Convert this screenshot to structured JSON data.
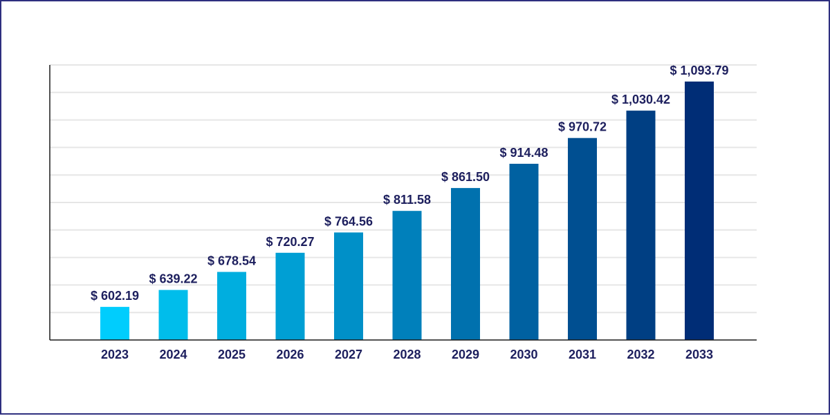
{
  "chart_data": {
    "type": "bar",
    "categories": [
      "2023",
      "2024",
      "2025",
      "2026",
      "2027",
      "2028",
      "2029",
      "2030",
      "2031",
      "2032",
      "2033"
    ],
    "values": [
      602.19,
      639.22,
      678.54,
      720.27,
      764.56,
      811.58,
      861.5,
      914.48,
      970.72,
      1030.42,
      1093.79
    ],
    "value_labels": [
      "$ 602.19",
      "$ 639.22",
      "$ 678.54",
      "$ 720.27",
      "$ 764.56",
      "$ 811.58",
      "$ 861.50",
      "$ 914.48",
      "$ 970.72",
      "$ 1,030.42",
      "$ 1,093.79"
    ],
    "ylim": [
      530,
      1130
    ],
    "grid": true,
    "legend": "none",
    "title": "",
    "xlabel": "",
    "ylabel": "",
    "colors": [
      "#00cdfd",
      "#00bdeb",
      "#00aedf",
      "#009fd4",
      "#0090c8",
      "#0080bb",
      "#0071ae",
      "#0061a1",
      "#004f91",
      "#003f83",
      "#002d76"
    ],
    "text_color": "#1d1f5e",
    "frame_color": "#2e2f7f"
  }
}
